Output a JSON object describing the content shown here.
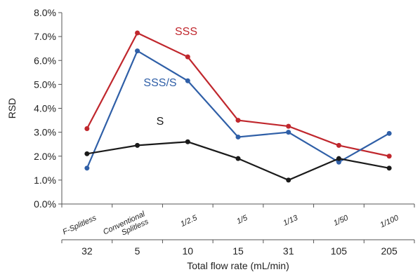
{
  "chart_data": {
    "type": "line",
    "categories": [
      "F-Splitless",
      "Conventional\nSplitless",
      "1/2.5",
      "1/5",
      "1/13",
      "1/50",
      "1/100"
    ],
    "flow_rates": [
      "32",
      "5",
      "10",
      "15",
      "31",
      "105",
      "205"
    ],
    "xlabel": "Total flow rate (mL/min)",
    "ylabel": "RSD",
    "ylim": [
      0,
      8
    ],
    "yticks": [
      "0.0%",
      "1.0%",
      "2.0%",
      "3.0%",
      "4.0%",
      "5.0%",
      "6.0%",
      "7.0%",
      "8.0%"
    ],
    "series": [
      {
        "name": "SSS",
        "color": "#c0272d",
        "values": [
          3.15,
          7.15,
          6.15,
          3.5,
          3.25,
          2.45,
          2.0
        ]
      },
      {
        "name": "SSS/S",
        "color": "#2f5fa7",
        "values": [
          1.5,
          6.4,
          5.15,
          2.8,
          3.0,
          1.75,
          2.95
        ]
      },
      {
        "name": "S",
        "color": "#1a1a1a",
        "values": [
          2.1,
          2.45,
          2.6,
          1.9,
          1.0,
          1.9,
          1.5
        ]
      }
    ]
  }
}
